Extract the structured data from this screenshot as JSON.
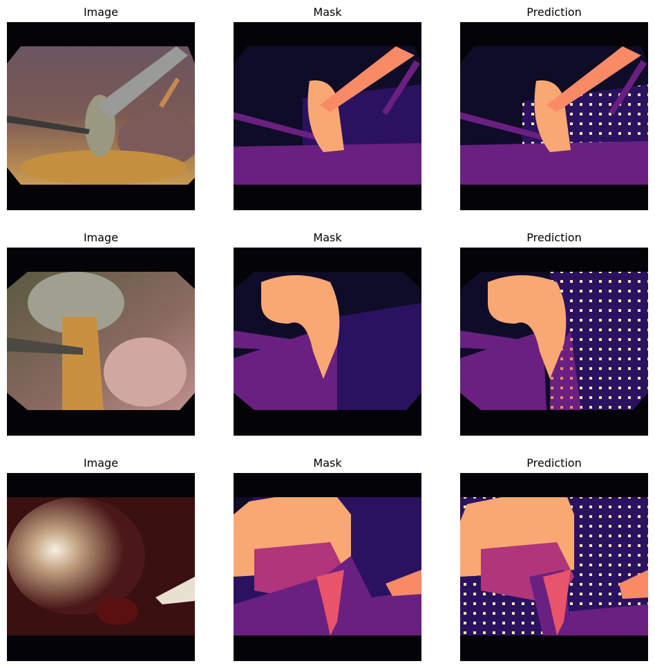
{
  "panels": [
    {
      "title": "Image",
      "kind": "image",
      "variant": 1
    },
    {
      "title": "Mask",
      "kind": "mask",
      "variant": 1
    },
    {
      "title": "Prediction",
      "kind": "prediction",
      "variant": 1
    },
    {
      "title": "Image",
      "kind": "image",
      "variant": 2
    },
    {
      "title": "Mask",
      "kind": "mask",
      "variant": 2
    },
    {
      "title": "Prediction",
      "kind": "prediction",
      "variant": 2
    },
    {
      "title": "Image",
      "kind": "image",
      "variant": 3
    },
    {
      "title": "Mask",
      "kind": "mask",
      "variant": 3
    },
    {
      "title": "Prediction",
      "kind": "prediction",
      "variant": 3
    }
  ],
  "colors": {
    "background": "#040307",
    "navy": "#0f0c28",
    "indigo": "#2a1260",
    "purple": "#6a2080",
    "magenta": "#b0357a",
    "pink": "#e8546a",
    "peach": "#f9a873",
    "salmon": "#f88a66",
    "light_yellow": "#fce8a8"
  }
}
